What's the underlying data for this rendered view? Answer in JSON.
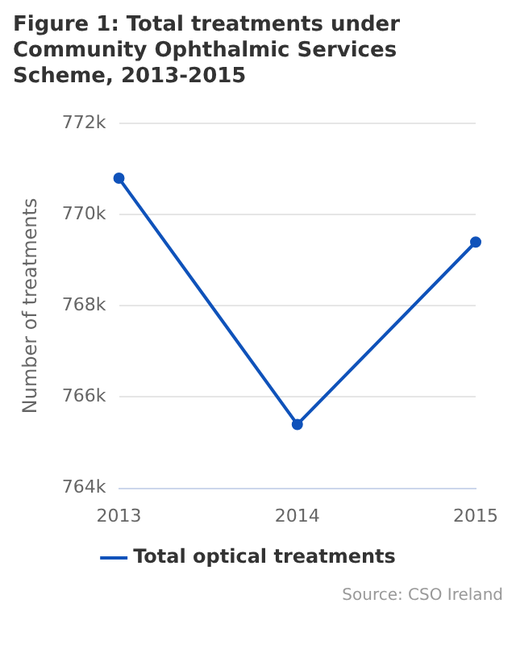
{
  "chart_data": {
    "type": "line",
    "title": "Figure 1: Total treatments under Community Ophthalmic Services Scheme, 2013-2015",
    "ylabel": "Number of treatments",
    "categories": [
      "2013",
      "2014",
      "2015"
    ],
    "series": [
      {
        "name": "Total optical treatments",
        "color": "#0f52ba",
        "values": [
          770800,
          765400,
          769400
        ]
      }
    ],
    "ylim": [
      764000,
      772000
    ],
    "yticks": [
      {
        "value": 764000,
        "label": "764k"
      },
      {
        "value": 766000,
        "label": "766k"
      },
      {
        "value": 768000,
        "label": "768k"
      },
      {
        "value": 770000,
        "label": "770k"
      },
      {
        "value": 772000,
        "label": "772k"
      }
    ],
    "grid": "y",
    "legend": "bottom",
    "marker": "circle",
    "line_style": "solid",
    "annotations": [
      "Source: CSO Ireland"
    ]
  }
}
